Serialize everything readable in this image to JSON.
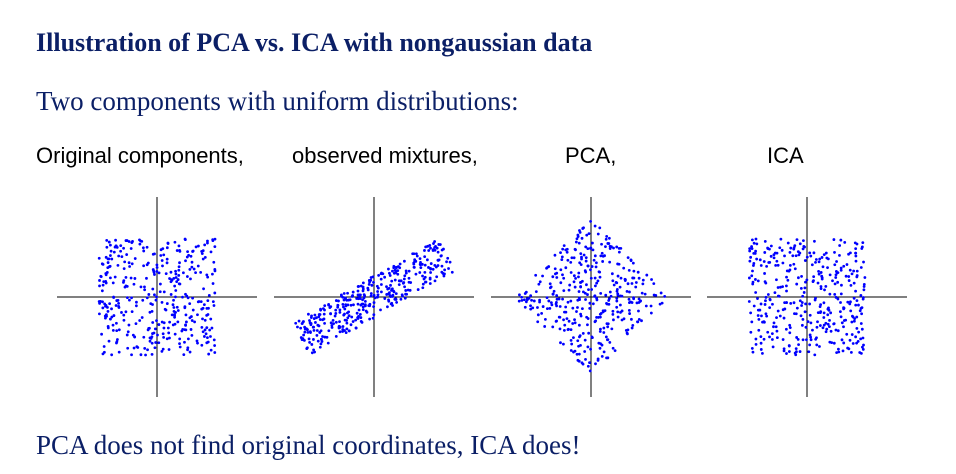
{
  "slide": {
    "title": "Illustration of PCA vs. ICA with nongaussian data",
    "subtitle": "Two components with uniform distributions:",
    "captions": {
      "original": "Original components,",
      "mixtures": "observed mixtures,",
      "pca": "PCA,",
      "ica": "ICA"
    },
    "footer": "PCA does not find original coordinates, ICA does!"
  },
  "colors": {
    "text": "#0b1f66",
    "points": "#0000ff",
    "axes": "#000000"
  },
  "chart_data": [
    {
      "type": "scatter",
      "name": "original-components",
      "distribution": "uniform square",
      "x_range": [
        -1,
        1
      ],
      "y_range": [
        -1,
        1
      ],
      "rotation_deg": 0,
      "shear": 0,
      "n_points": 380
    },
    {
      "type": "scatter",
      "name": "observed-mixtures",
      "distribution": "uniform parallelogram (sheared square)",
      "x_range": [
        -1,
        1
      ],
      "y_range": [
        -1,
        1
      ],
      "rotation_deg": 30,
      "shear": 0.4,
      "n_points": 380
    },
    {
      "type": "scatter",
      "name": "pca",
      "distribution": "uniform square rotated 45 degrees (diamond)",
      "x_range": [
        -1,
        1
      ],
      "y_range": [
        -1,
        1
      ],
      "rotation_deg": 45,
      "shear": 0,
      "n_points": 380
    },
    {
      "type": "scatter",
      "name": "ica",
      "distribution": "uniform square",
      "x_range": [
        -1,
        1
      ],
      "y_range": [
        -1,
        1
      ],
      "rotation_deg": 0,
      "shear": 0,
      "n_points": 380
    }
  ]
}
